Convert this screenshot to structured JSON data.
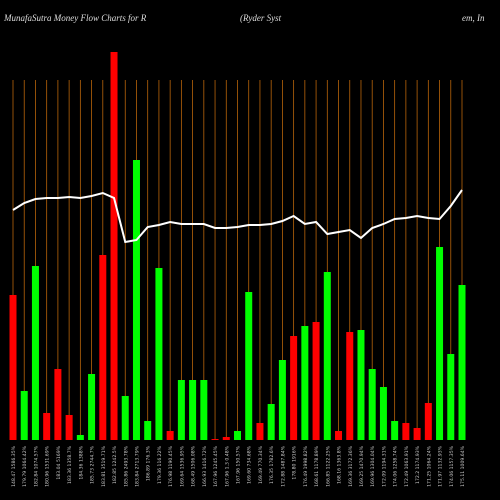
{
  "chart_data": {
    "type": "bar",
    "title_parts": [
      "MunafaSutra  Money Flow  Charts for R",
      "(Ryder Syst",
      "em,  In"
    ],
    "categories": [
      "148.47 1586.35%",
      "179.79 1064.42%",
      "182.84 1074.57%",
      "180.96 1531.69%",
      "183.04 5169%",
      "183.36 1358.7%",
      "184.36 1388%",
      "185.73 2744.7%",
      "183.81 3519.71%",
      "182.85 1242.5%",
      "185.86 2493.78%",
      "183.84 2713.79%",
      "186.89 176.3%",
      "179.36 116.22%",
      "176.98 1190.45%",
      "169.64 1536.95%",
      "168.49 1506.08%",
      "166.93 1416.72%",
      "167.96 1245.45%",
      "167.96 1.3 0.48%",
      "167.96 150.57%",
      "169.60 734.68%",
      "169.49 770.34%",
      "176.35 1782.6%",
      "172.88 1487.84%",
      "178.80 1916%",
      "176.49 1998.82%",
      "168.61 1178.89%",
      "166.85 1122.25%",
      "168.16 1363.8%",
      "169.36 3172.36%",
      "169.25 1470.94%",
      "169.96 1304.04%",
      "172.09 1194.31%",
      "174.06 1258.74%",
      "172.49 1063.91%",
      "172.2 1174.93%",
      "171.25 1064.24%",
      "171.97 1132.93%",
      "174.06 1157.35%",
      "175.11 1009.64%"
    ],
    "series": [
      {
        "name": "Money Flow",
        "values": [
          145,
          49,
          174,
          27,
          71,
          25,
          5,
          66,
          185,
          388,
          44,
          280,
          19,
          172,
          9,
          60,
          60,
          60,
          1,
          3,
          9,
          148,
          17,
          36,
          80,
          104,
          114,
          118,
          168,
          9,
          108,
          110,
          71,
          53,
          19,
          17,
          12,
          37,
          193,
          86,
          155
        ],
        "colors": [
          "#ff0000",
          "#00ff00",
          "#00ff00",
          "#ff0000",
          "#ff0000",
          "#ff0000",
          "#00ff00",
          "#00ff00",
          "#ff0000",
          "#ff0000",
          "#00ff00",
          "#00ff00",
          "#00ff00",
          "#00ff00",
          "#ff0000",
          "#00ff00",
          "#00ff00",
          "#00ff00",
          "#ff0000",
          "#ff0000",
          "#00ff00",
          "#00ff00",
          "#ff0000",
          "#00ff00",
          "#00ff00",
          "#ff0000",
          "#00ff00",
          "#ff0000",
          "#00ff00",
          "#ff0000",
          "#ff0000",
          "#00ff00",
          "#00ff00",
          "#00ff00",
          "#00ff00",
          "#ff0000",
          "#ff0000",
          "#ff0000",
          "#00ff00",
          "#00ff00",
          "#00ff00"
        ]
      },
      {
        "name": "Price",
        "type": "line",
        "color": "#ffffff",
        "values": [
          230,
          237,
          241,
          242,
          242,
          243,
          242,
          244,
          247,
          242,
          198,
          200,
          213,
          215,
          218,
          216,
          216,
          216,
          212,
          212,
          213,
          215,
          215,
          216,
          219,
          224,
          216,
          218,
          206,
          208,
          210,
          202,
          212,
          216,
          221,
          222,
          224,
          222,
          221,
          234,
          250
        ]
      }
    ],
    "ylim": [
      0,
      390
    ],
    "grid_color": "#b8640a"
  }
}
